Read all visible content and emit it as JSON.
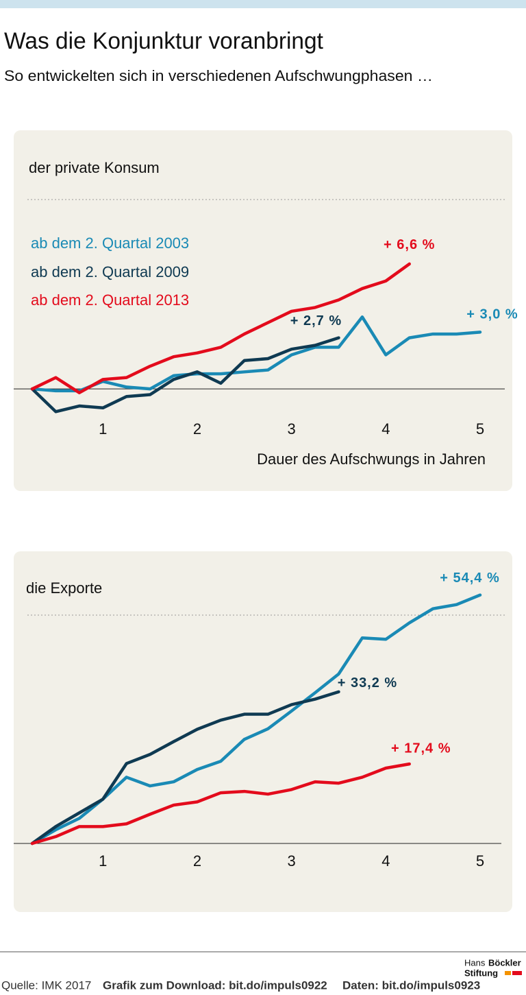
{
  "header": {
    "title": "Was die Konjunktur voranbringt",
    "subtitle": "So entwickelten sich in verschiedenen Aufschwungphasen …"
  },
  "chart_data": [
    {
      "type": "line",
      "title": "der private Konsum",
      "x_label": "Dauer des Aufschwungs in Jahren",
      "xlim": [
        0.25,
        5
      ],
      "xticks": [
        1,
        2,
        3,
        4,
        5
      ],
      "ylim": [
        -1.5,
        10
      ],
      "ygrid": [
        0,
        10
      ],
      "series": [
        {
          "name": "ab dem 2. Quartal 2003",
          "color": "#1a8ab5",
          "x": [
            0.25,
            0.5,
            0.75,
            1,
            1.25,
            1.5,
            1.75,
            2,
            2.25,
            2.5,
            2.75,
            3,
            3.25,
            3.5,
            3.75,
            4,
            4.25,
            4.5,
            4.75,
            5
          ],
          "values": [
            0,
            -0.1,
            -0.1,
            0.4,
            0.1,
            0,
            0.7,
            0.8,
            0.8,
            0.9,
            1,
            1.8,
            2.2,
            2.2,
            3.8,
            1.8,
            2.7,
            2.9,
            2.9,
            3
          ],
          "value_labels": [
            null,
            null,
            null,
            null,
            null,
            null,
            null,
            null,
            null,
            null,
            null,
            null,
            null,
            null,
            null,
            null,
            null,
            null,
            null,
            "+ 3,0 %"
          ]
        },
        {
          "name": "ab dem 2. Quartal 2009",
          "color": "#0f3a52",
          "x": [
            0.25,
            0.5,
            0.75,
            1,
            1.25,
            1.5,
            1.75,
            2,
            2.25,
            2.5,
            2.75,
            3,
            3.25,
            3.5
          ],
          "values": [
            0,
            -1.2,
            -0.9,
            -1,
            -0.4,
            -0.3,
            0.5,
            0.9,
            0.3,
            1.5,
            1.6,
            2.1,
            2.3,
            2.7
          ],
          "value_labels": [
            null,
            null,
            null,
            null,
            null,
            null,
            null,
            null,
            null,
            null,
            null,
            null,
            null,
            "+ 2,7 %"
          ]
        },
        {
          "name": "ab dem 2. Quartal 2013",
          "color": "#e30b1c",
          "x": [
            0.25,
            0.5,
            0.75,
            1,
            1.25,
            1.5,
            1.75,
            2,
            2.25,
            2.5,
            2.75,
            3,
            3.25,
            3.5,
            3.75,
            4,
            4.25
          ],
          "values": [
            0,
            0.6,
            -0.2,
            0.5,
            0.6,
            1.2,
            1.7,
            1.9,
            2.2,
            2.9,
            3.5,
            4.1,
            4.3,
            4.7,
            5.3,
            5.7,
            6.6
          ],
          "value_labels": [
            null,
            null,
            null,
            null,
            null,
            null,
            null,
            null,
            null,
            null,
            null,
            null,
            null,
            null,
            null,
            null,
            "+ 6,6 %"
          ]
        }
      ]
    },
    {
      "type": "line",
      "title": "die Exporte",
      "xlim": [
        0.25,
        5
      ],
      "xticks": [
        1,
        2,
        3,
        4,
        5
      ],
      "ylim": [
        0,
        50
      ],
      "ygrid": [
        0,
        50
      ],
      "series": [
        {
          "color": "#1a8ab5",
          "x": [
            0.25,
            0.5,
            0.75,
            1,
            1.25,
            1.5,
            1.75,
            2,
            2.25,
            2.5,
            2.75,
            3,
            3.25,
            3.5,
            3.75,
            4,
            4.25,
            4.5,
            4.75,
            5
          ],
          "values": [
            0,
            3,
            5.5,
            9.7,
            14.5,
            12.6,
            13.5,
            16.2,
            18,
            22.8,
            25.1,
            29,
            33,
            37.1,
            45,
            44.7,
            48.3,
            51.4,
            52.3,
            54.4
          ],
          "value_labels": [
            null,
            null,
            null,
            null,
            null,
            null,
            null,
            null,
            null,
            null,
            null,
            null,
            null,
            null,
            null,
            null,
            null,
            null,
            null,
            "+ 54,4 %"
          ]
        },
        {
          "color": "#0f3a52",
          "x": [
            0.25,
            0.5,
            0.75,
            1,
            1.25,
            1.5,
            1.75,
            2,
            2.25,
            2.5,
            2.75,
            3,
            3.25,
            3.5
          ],
          "values": [
            0,
            3.7,
            6.7,
            9.7,
            17.5,
            19.5,
            22.3,
            25,
            27,
            28.3,
            28.3,
            30.4,
            31.6,
            33.2
          ],
          "value_labels": [
            null,
            null,
            null,
            null,
            null,
            null,
            null,
            null,
            null,
            null,
            null,
            null,
            null,
            "+ 33,2 %"
          ]
        },
        {
          "color": "#e30b1c",
          "x": [
            0.25,
            0.5,
            0.75,
            1,
            1.25,
            1.5,
            1.75,
            2,
            2.25,
            2.5,
            2.75,
            3,
            3.25,
            3.5,
            3.75,
            4,
            4.25
          ],
          "values": [
            0,
            1.5,
            3.7,
            3.7,
            4.3,
            6.4,
            8.4,
            9.1,
            11.1,
            11.4,
            10.8,
            11.8,
            13.5,
            13.2,
            14.5,
            16.5,
            17.4
          ],
          "value_labels": [
            null,
            null,
            null,
            null,
            null,
            null,
            null,
            null,
            null,
            null,
            null,
            null,
            null,
            null,
            null,
            null,
            "+ 17,4 %"
          ]
        }
      ]
    }
  ],
  "footer": {
    "source": "Quelle: IMK 2017",
    "download": "Grafik zum Download: bit.do/impuls0922",
    "data": "Daten: bit.do/impuls0923",
    "logo_line1_a": "Hans",
    "logo_line1_b": "Böckler",
    "logo_line2": "Stiftung"
  }
}
